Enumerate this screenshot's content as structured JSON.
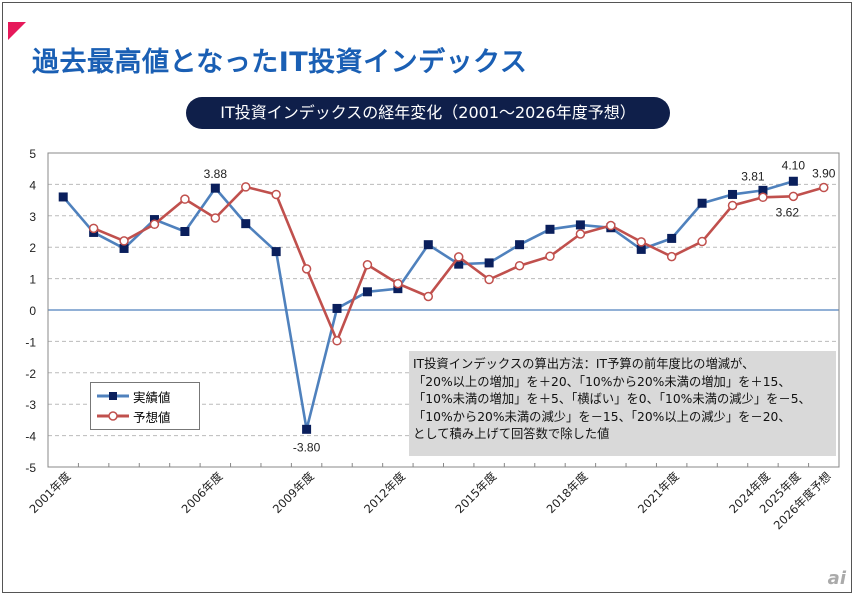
{
  "title": "過去最高値となったIT投資インデックス",
  "chart_data": {
    "type": "line",
    "title": "IT投資インデックスの経年変化（2001～2026年度予想）",
    "categories": [
      "2001年度",
      "2002年度",
      "2003年度",
      "2004年度",
      "2005年度",
      "2006年度",
      "2007年度",
      "2008年度",
      "2009年度",
      "2010年度",
      "2011年度",
      "2012年度",
      "2013年度",
      "2014年度",
      "2015年度",
      "2016年度",
      "2017年度",
      "2018年度",
      "2019年度",
      "2020年度",
      "2021年度",
      "2022年度",
      "2023年度",
      "2024年度",
      "2025年度",
      "2026年度予想"
    ],
    "tick_labels": [
      {
        "i": 0,
        "label": "2001年度"
      },
      {
        "i": 5,
        "label": "2006年度"
      },
      {
        "i": 8,
        "label": "2009年度"
      },
      {
        "i": 11,
        "label": "2012年度"
      },
      {
        "i": 14,
        "label": "2015年度"
      },
      {
        "i": 17,
        "label": "2018年度"
      },
      {
        "i": 20,
        "label": "2021年度"
      },
      {
        "i": 23,
        "label": "2024年度"
      },
      {
        "i": 24,
        "label": "2025年度"
      },
      {
        "i": 25,
        "label": "2026年度予想"
      }
    ],
    "ylim": [
      -5,
      5
    ],
    "yticks": [
      5,
      4,
      3,
      2,
      1,
      0,
      -1,
      -2,
      -3,
      -4,
      -5
    ],
    "grid": true,
    "legend_placement": "bottom-left",
    "series": [
      {
        "name": "実績値",
        "color": "#4f81bd",
        "marker_color": "#0a1f5c",
        "values": [
          3.6,
          2.47,
          1.96,
          2.88,
          2.5,
          3.88,
          2.75,
          1.86,
          -3.8,
          0.05,
          0.58,
          0.68,
          2.08,
          1.46,
          1.5,
          2.08,
          2.57,
          2.71,
          2.62,
          1.93,
          2.28,
          3.4,
          3.68,
          3.81,
          4.1,
          null
        ]
      },
      {
        "name": "予想値",
        "color": "#c0504d",
        "marker_color": "#ffffff",
        "values": [
          null,
          2.6,
          2.2,
          2.73,
          3.53,
          2.93,
          3.92,
          3.68,
          1.31,
          -0.98,
          1.44,
          0.84,
          0.43,
          1.69,
          0.97,
          1.41,
          1.71,
          2.42,
          2.69,
          2.17,
          1.7,
          2.18,
          3.33,
          3.59,
          3.62,
          3.9
        ]
      }
    ],
    "data_labels": [
      {
        "series": 0,
        "i": 5,
        "text": "3.88"
      },
      {
        "series": 0,
        "i": 8,
        "text": "-3.80"
      },
      {
        "series": 0,
        "i": 23,
        "text": "3.81"
      },
      {
        "series": 0,
        "i": 24,
        "text": "4.10"
      },
      {
        "series": 1,
        "i": 24,
        "text": "3.62"
      },
      {
        "series": 1,
        "i": 25,
        "text": "3.90"
      }
    ]
  },
  "note": [
    "IT投資インデックスの算出方法：IT予算の前年度比の増減が、",
    "「20%以上の増加」を＋20、「10%から20%未満の増加」を＋15、",
    "「10%未満の増加」を＋5、「横ばい」を0、「10%未満の減少」を－5、",
    "「10%から20%未満の減少」を－15、「20%以上の減少」を－20、",
    "として積み上げて回答数で除した値"
  ],
  "logo": "ai"
}
